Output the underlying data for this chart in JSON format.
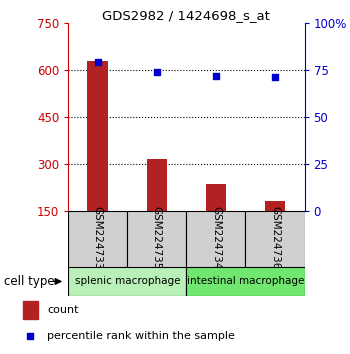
{
  "title": "GDS2982 / 1424698_s_at",
  "samples": [
    "GSM224733",
    "GSM224735",
    "GSM224734",
    "GSM224736"
  ],
  "counts": [
    630,
    315,
    235,
    180
  ],
  "percentile_ranks": [
    79,
    74,
    72,
    71
  ],
  "ylim_left": [
    150,
    750
  ],
  "yticks_left": [
    150,
    300,
    450,
    600,
    750
  ],
  "ylim_right": [
    0,
    100
  ],
  "yticks_right": [
    0,
    25,
    50,
    75,
    100
  ],
  "bar_color": "#b22222",
  "dot_color": "#0000cc",
  "bar_width": 0.35,
  "groups": [
    {
      "label": "splenic macrophage",
      "color": "#b8f0b8"
    },
    {
      "label": "intestinal macrophage",
      "color": "#70e870"
    }
  ],
  "cell_type_label": "cell type",
  "legend_count_label": "count",
  "legend_pct_label": "percentile rank within the sample",
  "left_tick_color": "#cc0000",
  "right_tick_color": "#0000cc",
  "grid_yticks": [
    300,
    450,
    600
  ]
}
